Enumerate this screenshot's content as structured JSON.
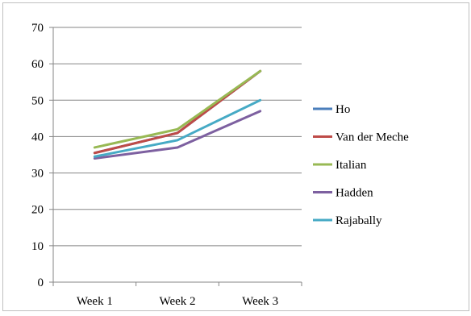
{
  "chart_data": {
    "type": "line",
    "categories": [
      "Week 1",
      "Week 2",
      "Week 3"
    ],
    "ylim": [
      0,
      70
    ],
    "yticks": [
      0,
      10,
      20,
      30,
      40,
      50,
      60,
      70
    ],
    "grid": true,
    "legend_position": "right",
    "title": "",
    "xlabel": "",
    "ylabel": "",
    "series": [
      {
        "name": "Ho",
        "color": "#4a7ebb",
        "values": [
          35.5,
          41,
          58
        ]
      },
      {
        "name": "Van der Meche",
        "color": "#be4b48",
        "values": [
          35.5,
          41,
          58
        ]
      },
      {
        "name": "Italian",
        "color": "#98b954",
        "values": [
          37,
          42,
          58
        ]
      },
      {
        "name": "Hadden",
        "color": "#7d60a0",
        "values": [
          34,
          37,
          47
        ]
      },
      {
        "name": "Rajabally",
        "color": "#46aac5",
        "values": [
          34.5,
          39,
          50
        ]
      }
    ]
  }
}
